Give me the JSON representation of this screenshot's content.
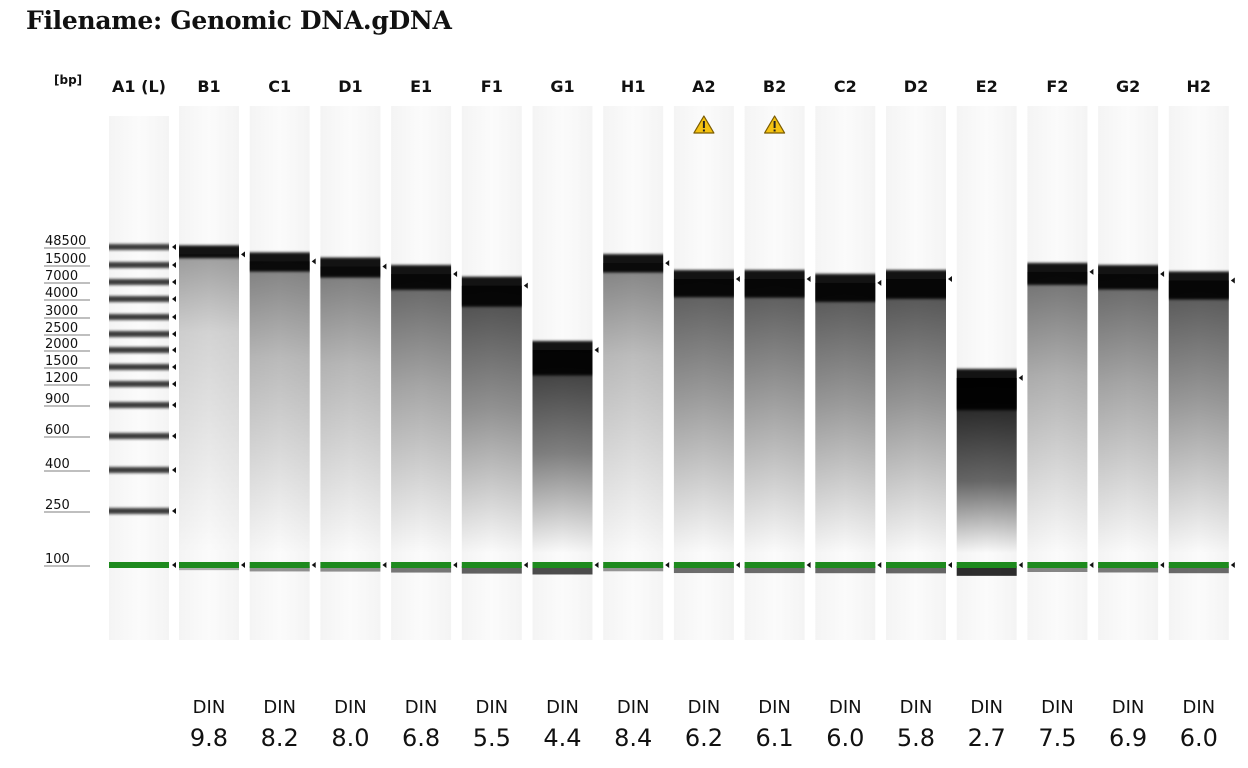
{
  "title": "Filename: Genomic DNA.gDNA",
  "chart_data": {
    "type": "gel",
    "size_unit": "[bp]",
    "ladder": {
      "lane": "A1 (L)",
      "sizes": [
        48500,
        15000,
        7000,
        4000,
        3000,
        2500,
        2000,
        1500,
        1200,
        900,
        600,
        400,
        250,
        100
      ]
    },
    "din_label": "DIN",
    "samples": [
      {
        "lane": "B1",
        "din": "9.8",
        "peak_bp": 30000,
        "warning": false
      },
      {
        "lane": "C1",
        "din": "8.2",
        "peak_bp": 19000,
        "warning": false
      },
      {
        "lane": "D1",
        "din": "8.0",
        "peak_bp": 14000,
        "warning": false
      },
      {
        "lane": "E1",
        "din": "6.8",
        "peak_bp": 10000,
        "warning": false
      },
      {
        "lane": "F1",
        "din": "5.5",
        "peak_bp": 6200,
        "warning": false
      },
      {
        "lane": "G1",
        "din": "4.4",
        "peak_bp": 2000,
        "warning": false
      },
      {
        "lane": "H1",
        "din": "8.4",
        "peak_bp": 17000,
        "warning": false
      },
      {
        "lane": "A2",
        "din": "6.2",
        "peak_bp": 8000,
        "warning": true
      },
      {
        "lane": "B2",
        "din": "6.1",
        "peak_bp": 8000,
        "warning": true
      },
      {
        "lane": "C2",
        "din": "6.0",
        "peak_bp": 6800,
        "warning": false
      },
      {
        "lane": "D2",
        "din": "5.8",
        "peak_bp": 8000,
        "warning": false
      },
      {
        "lane": "E2",
        "din": "2.7",
        "peak_bp": 1300,
        "warning": false
      },
      {
        "lane": "F2",
        "din": "7.5",
        "peak_bp": 11000,
        "warning": false
      },
      {
        "lane": "G2",
        "din": "6.9",
        "peak_bp": 10000,
        "warning": false
      },
      {
        "lane": "H2",
        "din": "6.0",
        "peak_bp": 7500,
        "warning": false
      }
    ],
    "marker_bp": 100,
    "colors": {
      "marker": "#1e8a1e",
      "warning_fill": "#f5c211",
      "warning_stroke": "#7a5b00"
    }
  }
}
